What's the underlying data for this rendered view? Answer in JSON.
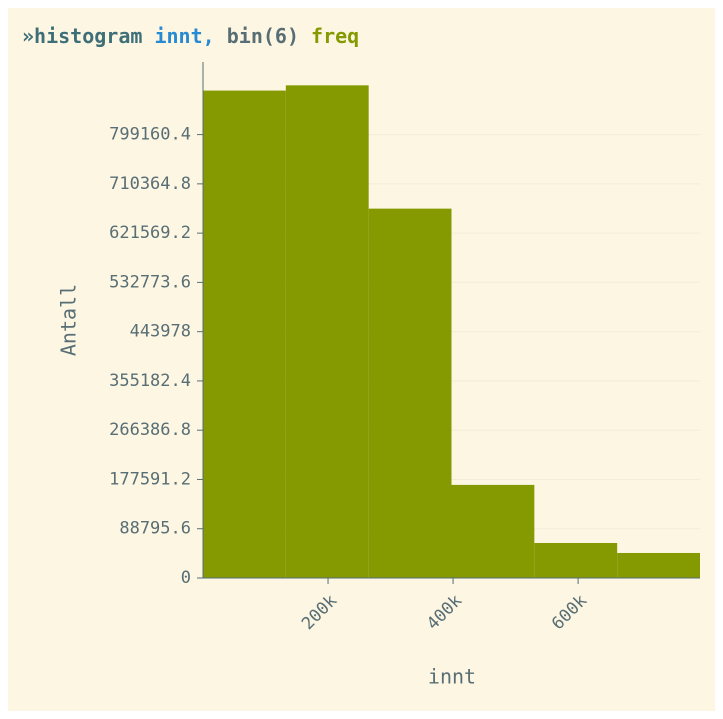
{
  "chart_data": {
    "type": "histogram",
    "title_parts": [
      "»histogram",
      "innt,",
      "bin(6)",
      "freq"
    ],
    "x_label": "innt",
    "y_label": "Antall",
    "bins": [
      0,
      132500,
      265000,
      397500,
      530000,
      662500,
      795000
    ],
    "values": [
      878500,
      887956,
      665700,
      167800,
      63100,
      45100
    ],
    "color": "#859900",
    "xlim": [
      0,
      795000
    ],
    "xticks": [
      {
        "value": 200000,
        "label": "200k"
      },
      {
        "value": 400000,
        "label": "400k"
      },
      {
        "value": 600000,
        "label": "600k"
      }
    ],
    "ylim": [
      0,
      930000
    ],
    "yticks": [
      0,
      88795.6,
      177591.2,
      266386.8,
      355182.4,
      443978,
      532773.6,
      621569.2,
      710364.8,
      799160.4
    ],
    "grid": true
  }
}
